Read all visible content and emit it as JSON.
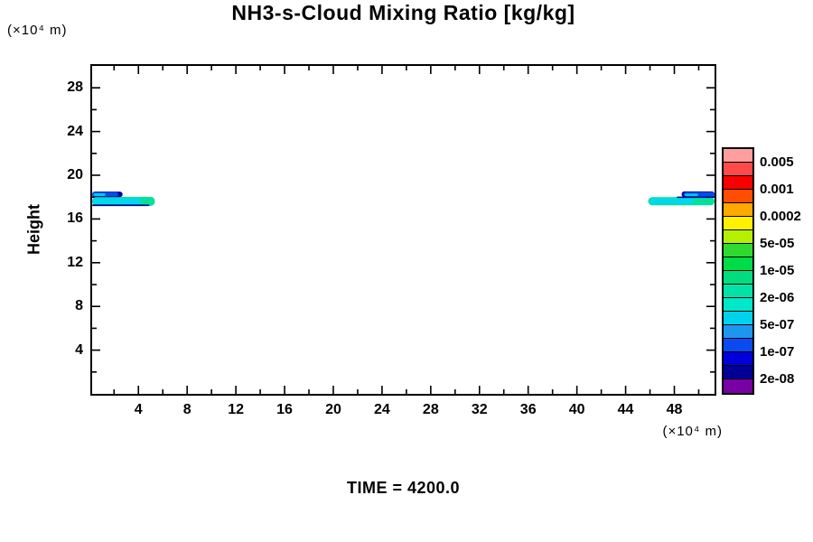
{
  "page": {
    "background": "#ffffff"
  },
  "chart_data": {
    "type": "contour",
    "title": "NH3-s-Cloud Mixing Ratio [kg/kg]",
    "time_label": "TIME = 4200.0",
    "x_axis": {
      "unit_label": "(×10⁴ m)",
      "min": 0.2,
      "max": 51.3,
      "major_ticks": [
        4,
        8,
        12,
        16,
        20,
        24,
        28,
        32,
        36,
        40,
        44,
        48
      ],
      "minor_ticks": [
        2,
        6,
        10,
        14,
        18,
        22,
        26,
        30,
        34,
        38,
        42,
        46,
        50
      ]
    },
    "y_axis": {
      "label": "Height",
      "unit_label": "(×10⁴ m)",
      "min": 0,
      "max": 30,
      "major_ticks": [
        4,
        8,
        12,
        16,
        20,
        24,
        28
      ],
      "minor_ticks": [
        2,
        6,
        10,
        14,
        18,
        22,
        26
      ]
    },
    "colorbar": {
      "labels": [
        "0.005",
        "0.001",
        "0.0002",
        "5e-05",
        "1e-05",
        "2e-06",
        "5e-07",
        "1e-07",
        "2e-08"
      ],
      "cell_colors": [
        "#FF9E9E",
        "#FF4A4A",
        "#F80000",
        "#FF4E00",
        "#FFA800",
        "#FFF200",
        "#B4F000",
        "#30D930",
        "#00DC48",
        "#00DC7E",
        "#00E2A8",
        "#00E8C8",
        "#00D2EC",
        "#1E96F0",
        "#0A4AF0",
        "#0000DC",
        "#000096",
        "#7800A5"
      ]
    },
    "features": [
      {
        "name": "left-band-green",
        "x0": 0.2,
        "x1": 5.35,
        "y0": 17.2,
        "y1": 18.02,
        "fill": "#00E29B",
        "rx": 4.5
      },
      {
        "name": "left-band-cyan",
        "x0": 0.2,
        "x1": 4.2,
        "y0": 17.35,
        "y1": 17.9,
        "fill": "#00D8EC",
        "rx": 3.5
      },
      {
        "name": "left-band-underline",
        "x0": 0.2,
        "x1": 4.9,
        "y0": 17.18,
        "y1": 17.32,
        "fill": "#000096",
        "rx": 1
      },
      {
        "name": "left-blob-navy",
        "x0": 0.2,
        "x1": 2.7,
        "y0": 18.0,
        "y1": 18.5,
        "fill": "#0000A0",
        "rx": 3
      },
      {
        "name": "left-blob-blue",
        "x0": 0.2,
        "x1": 2.35,
        "y0": 18.07,
        "y1": 18.44,
        "fill": "#0050E6",
        "rx": 3
      },
      {
        "name": "left-blob-cyan",
        "x0": 0.3,
        "x1": 1.3,
        "y0": 18.1,
        "y1": 18.35,
        "fill": "#00C8F0",
        "rx": 2
      },
      {
        "name": "right-band-green",
        "x0": 45.85,
        "x1": 51.3,
        "y0": 17.25,
        "y1": 18.0,
        "fill": "#00E29B",
        "rx": 4.5
      },
      {
        "name": "right-band-cyan",
        "x0": 45.95,
        "x1": 49.6,
        "y0": 17.38,
        "y1": 17.9,
        "fill": "#00D8EC",
        "rx": 3.5
      },
      {
        "name": "right-band-topline",
        "x0": 48.2,
        "x1": 51.3,
        "y0": 17.92,
        "y1": 18.05,
        "fill": "#000096",
        "rx": 1
      },
      {
        "name": "right-blob-navy",
        "x0": 48.6,
        "x1": 51.3,
        "y0": 18.0,
        "y1": 18.52,
        "fill": "#0000A0",
        "rx": 3
      },
      {
        "name": "right-blob-blue",
        "x0": 48.75,
        "x1": 51.3,
        "y0": 18.06,
        "y1": 18.45,
        "fill": "#0050E6",
        "rx": 3
      },
      {
        "name": "right-blob-cyan",
        "x0": 48.85,
        "x1": 49.95,
        "y0": 18.09,
        "y1": 18.32,
        "fill": "#00C8F0",
        "rx": 2
      }
    ]
  }
}
